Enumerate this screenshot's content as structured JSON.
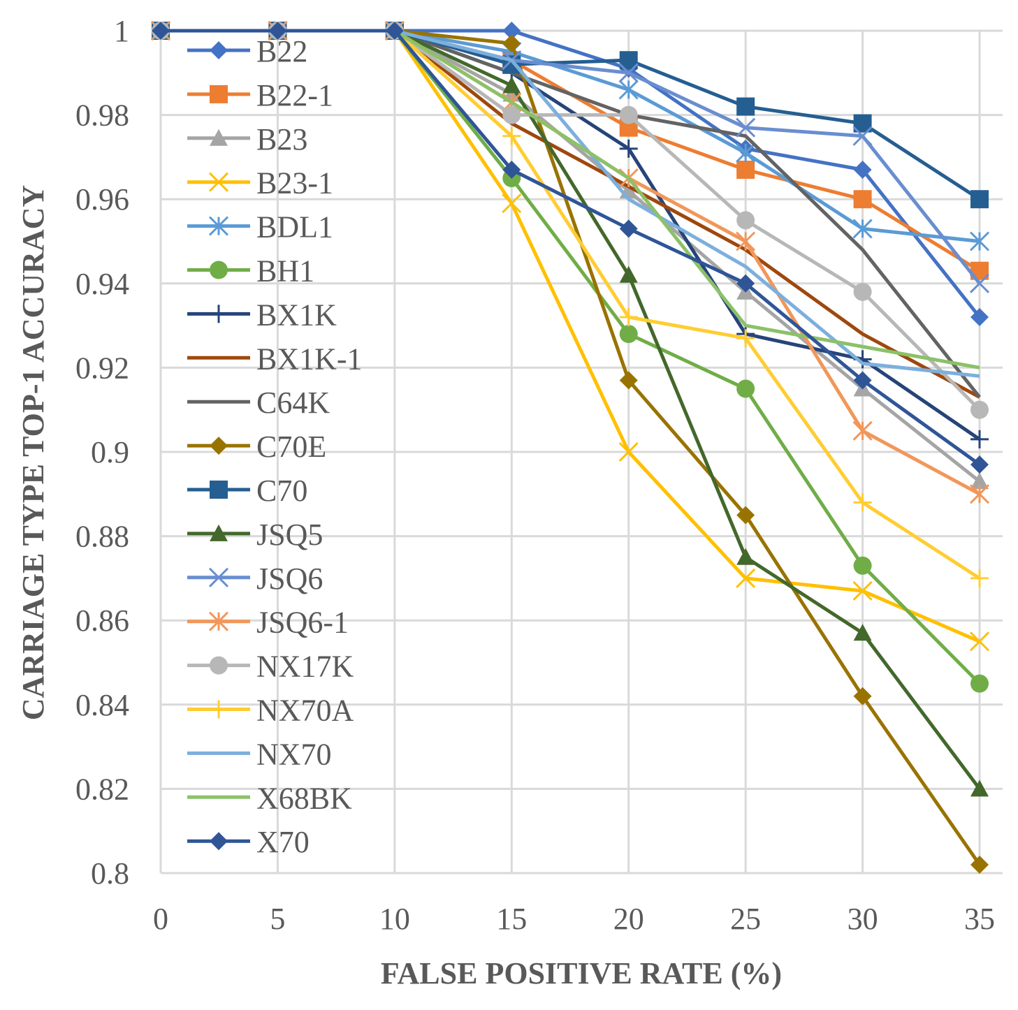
{
  "chart_data": {
    "type": "line",
    "title": "",
    "xlabel": "FALSE POSITIVE RATE (%)",
    "ylabel": "CARRIAGE TYPE TOP-1 ACCURACY",
    "x": [
      0,
      5,
      10,
      15,
      20,
      25,
      30,
      35
    ],
    "xlim": [
      0,
      35
    ],
    "ylim": [
      0.8,
      1
    ],
    "x_ticks": [
      "0",
      "5",
      "10",
      "15",
      "20",
      "25",
      "30",
      "35"
    ],
    "y_ticks": [
      "0.8",
      "0.82",
      "0.84",
      "0.86",
      "0.88",
      "0.9",
      "0.92",
      "0.94",
      "0.96",
      "0.98",
      "1"
    ],
    "grid": true,
    "legend_position": "top-left",
    "series": [
      {
        "name": "B22",
        "color": "#4472C4",
        "marker": "diamond",
        "values": [
          1,
          1,
          1,
          1.0,
          0.991,
          0.972,
          0.967,
          0.932
        ]
      },
      {
        "name": "B22-1",
        "color": "#ED7D31",
        "marker": "square",
        "values": [
          1,
          1,
          1,
          0.993,
          0.977,
          0.967,
          0.96,
          0.943
        ]
      },
      {
        "name": "B23",
        "color": "#A5A5A5",
        "marker": "triangle",
        "values": [
          1,
          1,
          1,
          0.985,
          0.962,
          0.938,
          0.915,
          0.893
        ]
      },
      {
        "name": "B23-1",
        "color": "#FFC000",
        "marker": "x",
        "values": [
          1,
          1,
          1,
          0.959,
          0.9,
          0.87,
          0.867,
          0.855
        ]
      },
      {
        "name": "BDL1",
        "color": "#5B9BD5",
        "marker": "asterisk",
        "values": [
          1,
          1,
          1,
          0.995,
          0.986,
          0.971,
          0.953,
          0.95
        ]
      },
      {
        "name": "BH1",
        "color": "#70AD47",
        "marker": "circle",
        "values": [
          1,
          1,
          1,
          0.965,
          0.928,
          0.915,
          0.873,
          0.845
        ]
      },
      {
        "name": "BX1K",
        "color": "#264478",
        "marker": "plus",
        "values": [
          1,
          1,
          1,
          0.99,
          0.972,
          0.928,
          0.922,
          0.903
        ]
      },
      {
        "name": "BX1K-1",
        "color": "#9E480E",
        "marker": "none",
        "values": [
          1,
          1,
          1,
          0.978,
          0.963,
          0.948,
          0.928,
          0.913
        ]
      },
      {
        "name": "C64K",
        "color": "#636363",
        "marker": "none",
        "values": [
          1,
          1,
          1,
          0.99,
          0.98,
          0.975,
          0.948,
          0.913
        ]
      },
      {
        "name": "C70E",
        "color": "#997300",
        "marker": "diamond",
        "values": [
          1,
          1,
          1,
          0.997,
          0.917,
          0.885,
          0.842,
          0.802
        ]
      },
      {
        "name": "C70",
        "color": "#255E91",
        "marker": "square",
        "values": [
          1,
          1,
          1,
          0.992,
          0.993,
          0.982,
          0.978,
          0.96
        ]
      },
      {
        "name": "JSQ5",
        "color": "#43682B",
        "marker": "triangle",
        "values": [
          1,
          1,
          1,
          0.987,
          0.942,
          0.875,
          0.857,
          0.82
        ]
      },
      {
        "name": "JSQ6",
        "color": "#698ED0",
        "marker": "x",
        "values": [
          1,
          1,
          1,
          0.993,
          0.99,
          0.977,
          0.975,
          0.94
        ]
      },
      {
        "name": "JSQ6-1",
        "color": "#F1975A",
        "marker": "asterisk",
        "values": [
          1,
          1,
          1,
          0.983,
          0.965,
          0.95,
          0.905,
          0.89
        ]
      },
      {
        "name": "NX17K",
        "color": "#B7B7B7",
        "marker": "circle",
        "values": [
          1,
          1,
          1,
          0.98,
          0.98,
          0.955,
          0.938,
          0.91
        ]
      },
      {
        "name": "NX70A",
        "color": "#FFCD33",
        "marker": "plus",
        "values": [
          1,
          1,
          1,
          0.975,
          0.932,
          0.927,
          0.888,
          0.87
        ]
      },
      {
        "name": "NX70",
        "color": "#7CAFDD",
        "marker": "none",
        "values": [
          1,
          1,
          1,
          0.993,
          0.96,
          0.944,
          0.921,
          0.918
        ]
      },
      {
        "name": "X68BK",
        "color": "#8CC168",
        "marker": "none",
        "values": [
          1,
          1,
          1,
          0.983,
          0.965,
          0.93,
          0.925,
          0.92
        ]
      },
      {
        "name": "X70",
        "color": "#2F5597",
        "marker": "diamond",
        "values": [
          1,
          1,
          1,
          0.967,
          0.953,
          0.94,
          0.917,
          0.897
        ]
      }
    ]
  }
}
